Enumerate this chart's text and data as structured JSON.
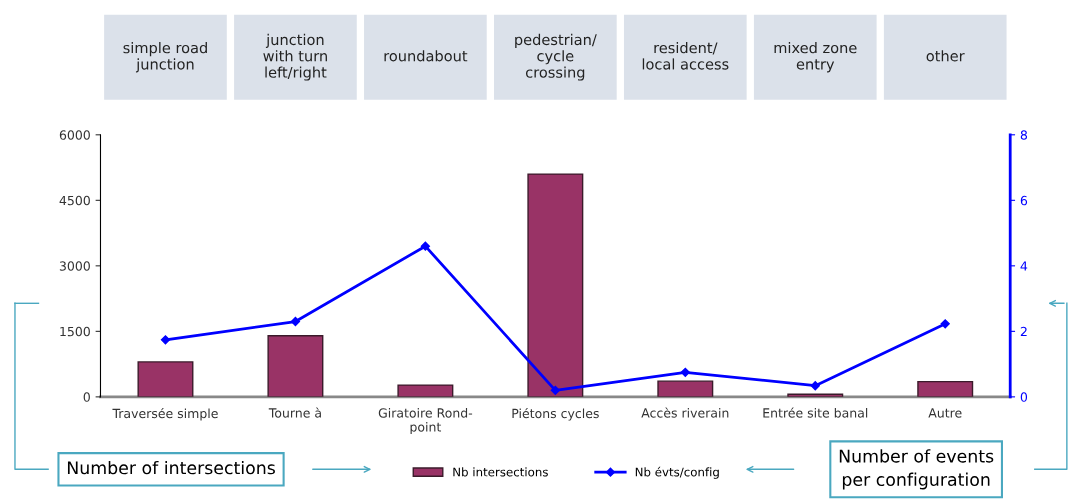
{
  "chart_data": {
    "type": "bar",
    "categories": [
      "Traversée simple",
      "Tourne à",
      "Giratoire Rond-\npoint",
      "Piétons cycles",
      "Accès riverain",
      "Entrée site banal",
      "Autre"
    ],
    "series": [
      {
        "name": "Nb intersections",
        "color": "#993366",
        "values": [
          800,
          1400,
          270,
          5100,
          360,
          60,
          350
        ]
      },
      {
        "name": "Nb évts/config",
        "type": "line",
        "axis": "y2",
        "color": "#0000ff",
        "marker": "diamond",
        "values": [
          1.74,
          2.3,
          4.6,
          0.2,
          0.75,
          0.34,
          2.23
        ]
      }
    ],
    "ylim": [
      0,
      6000
    ],
    "yticks": [
      0,
      1500,
      3000,
      4500,
      6000
    ],
    "y2lim": [
      0,
      8
    ],
    "y2ticks": [
      0,
      2,
      4,
      6,
      8
    ],
    "grid": false,
    "legend": "bottom",
    "annotations": [
      "simple road\njunction",
      "junction\nwith turn\nleft/right",
      "roundabout",
      "pedestrian/\ncycle\ncrossing",
      "resident/\nlocal access",
      "mixed zone\nentry",
      "other",
      "Number of intersections",
      "Number of events\nper configuration"
    ]
  }
}
